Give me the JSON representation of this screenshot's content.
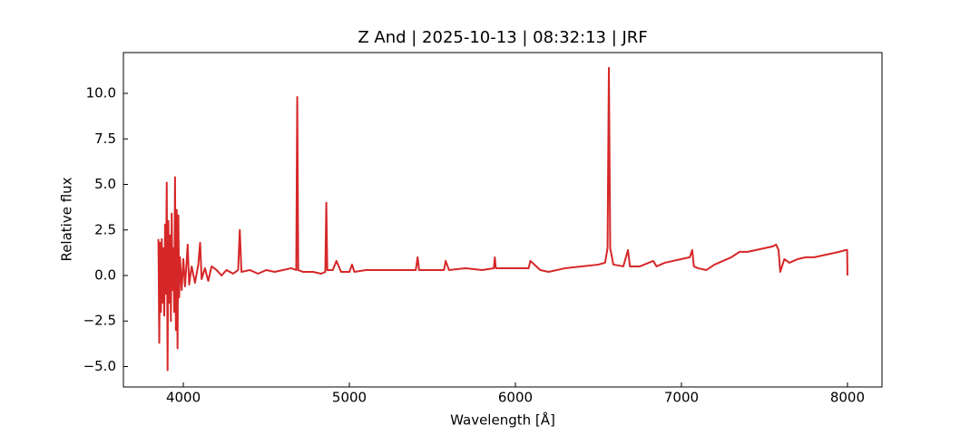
{
  "chart_data": {
    "type": "line",
    "title": "Z And | 2025-10-13 | 08:32:13 | JRF",
    "xlabel": "Wavelength [Å]",
    "ylabel": "Relative flux",
    "color": "#d62728",
    "x": [
      3850,
      3855,
      3860,
      3865,
      3870,
      3875,
      3880,
      3885,
      3890,
      3895,
      3900,
      3905,
      3910,
      3915,
      3920,
      3925,
      3930,
      3935,
      3940,
      3945,
      3950,
      3955,
      3960,
      3965,
      3970,
      3975,
      3980,
      3990,
      4000,
      4010,
      4020,
      4026,
      4035,
      4050,
      4070,
      4090,
      4101,
      4110,
      4130,
      4150,
      4170,
      4200,
      4230,
      4260,
      4300,
      4330,
      4340,
      4350,
      4400,
      4450,
      4500,
      4550,
      4600,
      4650,
      4680,
      4686,
      4692,
      4720,
      4780,
      4830,
      4855,
      4861,
      4867,
      4900,
      4922,
      4950,
      5000,
      5016,
      5030,
      5100,
      5200,
      5300,
      5400,
      5411,
      5420,
      5500,
      5570,
      5580,
      5600,
      5700,
      5800,
      5870,
      5876,
      5882,
      5950,
      6000,
      6080,
      6090,
      6150,
      6200,
      6300,
      6400,
      6500,
      6540,
      6555,
      6563,
      6571,
      6590,
      6650,
      6678,
      6690,
      6750,
      6830,
      6850,
      6900,
      7000,
      7050,
      7065,
      7075,
      7100,
      7150,
      7200,
      7250,
      7300,
      7350,
      7400,
      7450,
      7500,
      7550,
      7570,
      7585,
      7595,
      7620,
      7650,
      7700,
      7750,
      7800,
      7850,
      7900,
      7950,
      7990,
      7998,
      8000
    ],
    "values": [
      2.0,
      -3.7,
      1.8,
      -2.0,
      2.0,
      -1.5,
      1.5,
      -2.2,
      2.8,
      -1.0,
      5.1,
      -5.2,
      3.0,
      -1.5,
      2.2,
      -2.5,
      3.4,
      -0.8,
      1.5,
      -2.0,
      5.4,
      -3.0,
      3.6,
      -4.0,
      3.3,
      -1.2,
      1.0,
      -0.8,
      0.9,
      -0.6,
      0.8,
      1.7,
      -0.5,
      0.5,
      -0.4,
      0.6,
      1.8,
      -0.2,
      0.4,
      -0.3,
      0.5,
      0.3,
      0.0,
      0.3,
      0.1,
      0.3,
      2.5,
      0.2,
      0.3,
      0.1,
      0.3,
      0.2,
      0.3,
      0.4,
      0.3,
      9.8,
      0.3,
      0.2,
      0.2,
      0.1,
      0.2,
      4.0,
      0.3,
      0.3,
      0.8,
      0.2,
      0.2,
      0.6,
      0.2,
      0.3,
      0.3,
      0.3,
      0.3,
      1.0,
      0.3,
      0.3,
      0.3,
      0.8,
      0.3,
      0.4,
      0.3,
      0.4,
      1.0,
      0.4,
      0.4,
      0.4,
      0.4,
      0.8,
      0.3,
      0.2,
      0.4,
      0.5,
      0.6,
      0.7,
      1.5,
      11.4,
      1.5,
      0.6,
      0.5,
      1.4,
      0.5,
      0.5,
      0.8,
      0.5,
      0.7,
      0.9,
      1.0,
      1.4,
      0.5,
      0.4,
      0.3,
      0.6,
      0.8,
      1.0,
      1.3,
      1.3,
      1.4,
      1.5,
      1.6,
      1.7,
      1.4,
      0.2,
      0.9,
      0.7,
      0.9,
      1.0,
      1.0,
      1.1,
      1.2,
      1.3,
      1.4,
      1.4,
      0.0
    ],
    "xlim": [
      3639,
      8208
    ],
    "xticks": [
      4000,
      5000,
      6000,
      7000,
      8000
    ],
    "ylim": [
      -6.12,
      12.24
    ],
    "yticks": [
      {
        "value": -5,
        "label": "−5.0"
      },
      {
        "value": -2.5,
        "label": "−2.5"
      },
      {
        "value": 0,
        "label": "0.0"
      },
      {
        "value": 2.5,
        "label": "2.5"
      },
      {
        "value": 5,
        "label": "5.0"
      },
      {
        "value": 7.5,
        "label": "7.5"
      },
      {
        "value": 10,
        "label": "10.0"
      }
    ]
  }
}
